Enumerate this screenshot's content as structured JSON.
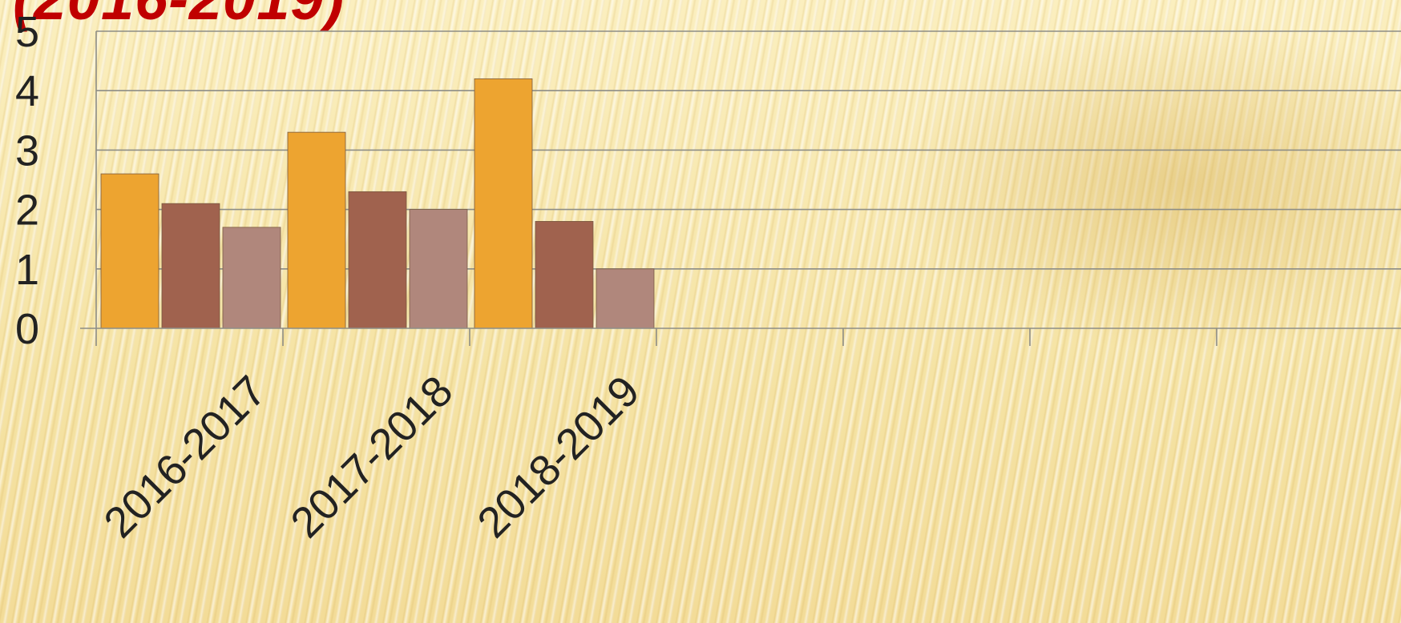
{
  "slide": {
    "title_fragment": "(2016-2019)"
  },
  "chart_data": {
    "type": "bar",
    "categories": [
      "2016-2017",
      "2017-2018",
      "2018-2019",
      "",
      "",
      "",
      ""
    ],
    "series": [
      {
        "values": [
          2.6,
          3.3,
          4.2,
          null,
          null,
          null,
          null
        ],
        "color": "#eda430"
      },
      {
        "values": [
          2.1,
          2.3,
          1.8,
          null,
          null,
          null,
          null
        ],
        "color": "#a0624e"
      },
      {
        "values": [
          1.7,
          2.0,
          1.0,
          null,
          null,
          null,
          null
        ],
        "color": "#b0877c"
      }
    ],
    "ylim": [
      0,
      5
    ],
    "yticks": [
      "0",
      "1",
      "2",
      "3",
      "4",
      "5"
    ],
    "grid": true,
    "legend": "none",
    "xlabel": "",
    "ylabel": ""
  }
}
